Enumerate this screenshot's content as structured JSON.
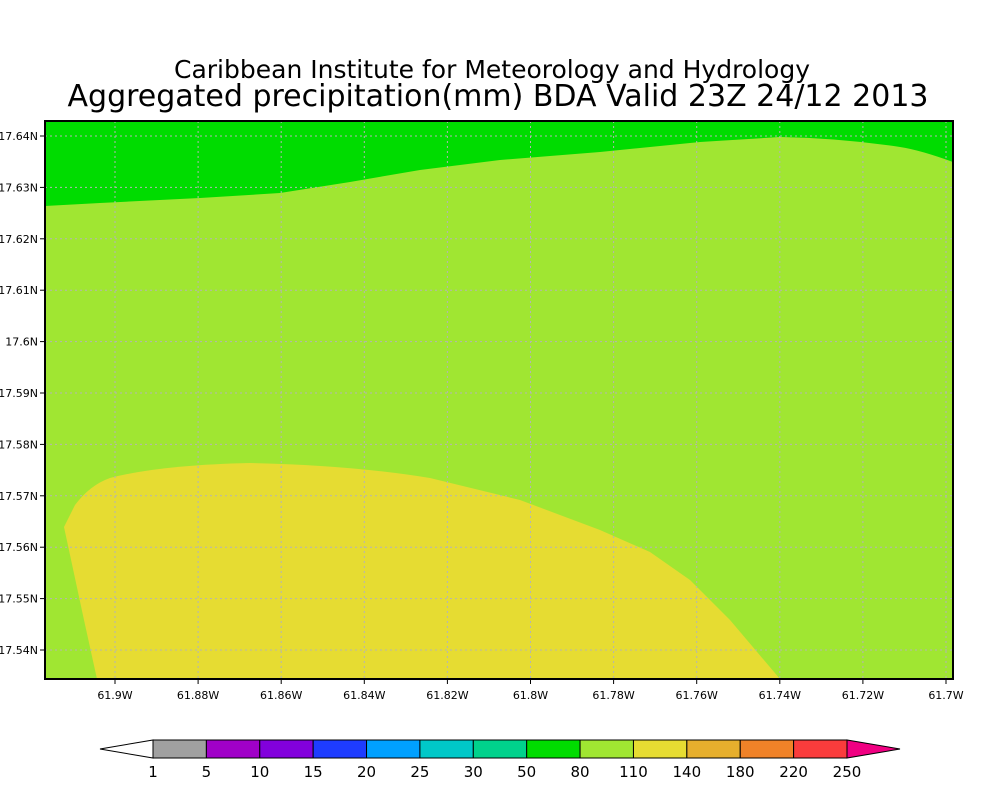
{
  "header": {
    "line1": "Caribbean Institute for Meteorology and Hydrology",
    "line2": "Aggregated precipitation(mm) BDA Valid 23Z 24/12 2013"
  },
  "map": {
    "x_labels": [
      "61.9W",
      "61.88W",
      "61.86W",
      "61.84W",
      "61.82W",
      "61.8W",
      "61.78W",
      "61.76W",
      "61.74W",
      "61.72W",
      "61.7W"
    ],
    "y_labels": [
      "17.64N",
      "17.63N",
      "17.62N",
      "17.61N",
      "17.6N",
      "17.59N",
      "17.58N",
      "17.57N",
      "17.56N",
      "17.55N",
      "17.54N"
    ]
  },
  "colorbar": {
    "labels": [
      "1",
      "5",
      "10",
      "15",
      "20",
      "25",
      "30",
      "50",
      "80",
      "110",
      "140",
      "180",
      "220",
      "250"
    ],
    "colors": [
      "#ffffff",
      "#a0a0a0",
      "#a000c8",
      "#8200dc",
      "#1e3cff",
      "#00a0ff",
      "#00c8c8",
      "#00d28c",
      "#00dc00",
      "#a0e632",
      "#e6dc32",
      "#e6af2d",
      "#f08228",
      "#fa3c3c",
      "#f00082"
    ]
  }
}
